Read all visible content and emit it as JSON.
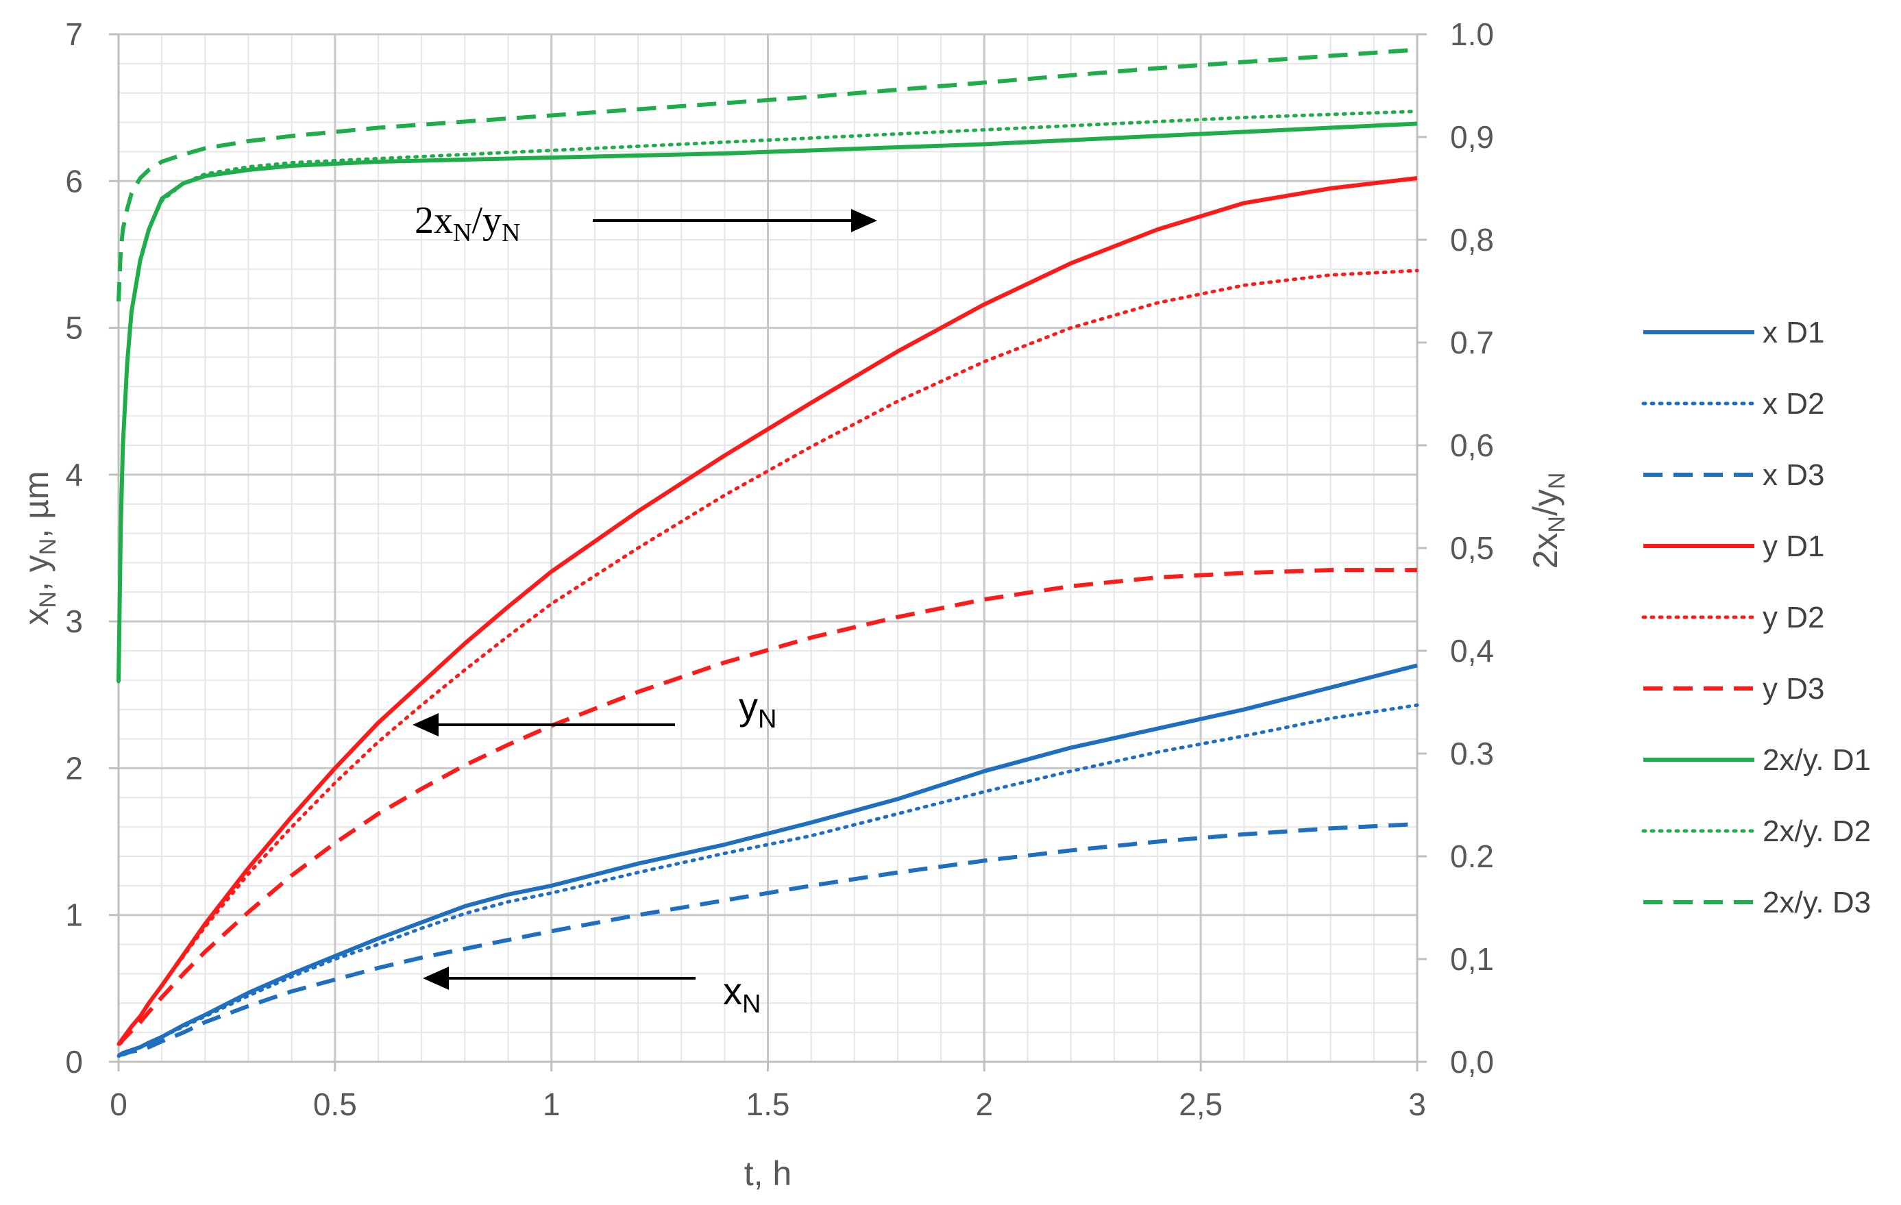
{
  "chart_data": {
    "type": "line",
    "x": [
      0,
      0.005,
      0.01,
      0.02,
      0.03,
      0.05,
      0.07,
      0.1,
      0.15,
      0.2,
      0.3,
      0.4,
      0.5,
      0.6,
      0.7,
      0.8,
      0.9,
      1.0,
      1.2,
      1.4,
      1.6,
      1.8,
      2.0,
      2.2,
      2.4,
      2.6,
      2.8,
      3.0
    ],
    "xlabel": "t, h",
    "ylabel_left": "x_N, y_N, µm",
    "ylabel_right": "2x_N/y_N",
    "xlim": [
      0,
      3
    ],
    "ylim_left": [
      0,
      7
    ],
    "ylim_right": [
      0,
      1
    ],
    "x_ticks": [
      "0",
      "0.5",
      "1",
      "1.5",
      "2",
      "2,5",
      "3"
    ],
    "y_ticks_left": [
      "0",
      "1",
      "2",
      "3",
      "4",
      "5",
      "6",
      "7"
    ],
    "y_ticks_right": [
      "0,0",
      "0,1",
      "0.2",
      "0.3",
      "0,4",
      "0,5",
      "0,6",
      "0.7",
      "0,8",
      "0,9",
      "1.0"
    ],
    "grid": true,
    "legend_position": "right",
    "series": [
      {
        "name": "x D1",
        "axis": "left",
        "color": "#1f6fc0",
        "style": "solid",
        "values": [
          0.04,
          0.05,
          0.06,
          0.07,
          0.08,
          0.1,
          0.13,
          0.17,
          0.25,
          0.32,
          0.47,
          0.6,
          0.72,
          0.84,
          0.95,
          1.06,
          1.14,
          1.2,
          1.35,
          1.48,
          1.63,
          1.79,
          1.98,
          2.14,
          2.27,
          2.4,
          2.55,
          2.7
        ]
      },
      {
        "name": "x D2",
        "axis": "left",
        "color": "#1f6fc0",
        "style": "dotted",
        "values": [
          0.04,
          0.05,
          0.06,
          0.07,
          0.08,
          0.1,
          0.13,
          0.17,
          0.24,
          0.31,
          0.45,
          0.58,
          0.7,
          0.8,
          0.91,
          1.01,
          1.09,
          1.15,
          1.29,
          1.42,
          1.54,
          1.69,
          1.84,
          1.98,
          2.11,
          2.22,
          2.34,
          2.43
        ]
      },
      {
        "name": "x D3",
        "axis": "left",
        "color": "#1f6fc0",
        "style": "dashed",
        "values": [
          0.04,
          0.05,
          0.05,
          0.06,
          0.07,
          0.08,
          0.1,
          0.14,
          0.2,
          0.27,
          0.38,
          0.48,
          0.56,
          0.64,
          0.71,
          0.77,
          0.83,
          0.89,
          1.0,
          1.1,
          1.2,
          1.29,
          1.37,
          1.44,
          1.5,
          1.55,
          1.59,
          1.62
        ]
      },
      {
        "name": "y D1",
        "axis": "left",
        "color": "#ff1a1a",
        "style": "solid",
        "values": [
          0.12,
          0.14,
          0.16,
          0.2,
          0.24,
          0.31,
          0.4,
          0.52,
          0.73,
          0.94,
          1.32,
          1.67,
          2.0,
          2.31,
          2.58,
          2.85,
          3.1,
          3.34,
          3.75,
          4.13,
          4.49,
          4.84,
          5.16,
          5.44,
          5.67,
          5.85,
          5.95,
          6.02
        ]
      },
      {
        "name": "y D2",
        "axis": "left",
        "color": "#ff1a1a",
        "style": "dotted",
        "values": [
          0.12,
          0.14,
          0.16,
          0.2,
          0.24,
          0.31,
          0.4,
          0.52,
          0.72,
          0.92,
          1.28,
          1.6,
          1.9,
          2.18,
          2.43,
          2.67,
          2.9,
          3.12,
          3.5,
          3.86,
          4.19,
          4.5,
          4.77,
          5.0,
          5.17,
          5.29,
          5.36,
          5.39
        ]
      },
      {
        "name": "y D3",
        "axis": "left",
        "color": "#ff1a1a",
        "style": "dashed",
        "values": [
          0.12,
          0.13,
          0.15,
          0.18,
          0.21,
          0.27,
          0.34,
          0.44,
          0.6,
          0.75,
          1.02,
          1.27,
          1.49,
          1.69,
          1.86,
          2.02,
          2.16,
          2.29,
          2.52,
          2.72,
          2.89,
          3.03,
          3.15,
          3.24,
          3.3,
          3.33,
          3.35,
          3.35
        ]
      },
      {
        "name": "2x/y. D1",
        "axis": "right",
        "color": "#1fad4b",
        "style": "solid",
        "values": [
          0.37,
          0.52,
          0.6,
          0.68,
          0.73,
          0.78,
          0.81,
          0.84,
          0.855,
          0.862,
          0.868,
          0.872,
          0.874,
          0.876,
          0.877,
          0.878,
          0.879,
          0.88,
          0.882,
          0.884,
          0.887,
          0.89,
          0.893,
          0.897,
          0.901,
          0.905,
          0.909,
          0.913
        ]
      },
      {
        "name": "2x/y. D2",
        "axis": "right",
        "color": "#1fad4b",
        "style": "dotted",
        "values": [
          0.37,
          0.52,
          0.6,
          0.68,
          0.73,
          0.78,
          0.81,
          0.838,
          0.855,
          0.864,
          0.871,
          0.875,
          0.877,
          0.879,
          0.881,
          0.883,
          0.885,
          0.887,
          0.891,
          0.895,
          0.899,
          0.903,
          0.907,
          0.911,
          0.915,
          0.919,
          0.922,
          0.925
        ]
      },
      {
        "name": "2x/y. D3",
        "axis": "right",
        "color": "#1fad4b",
        "style": "dashed",
        "values": [
          0.74,
          0.79,
          0.81,
          0.83,
          0.845,
          0.86,
          0.868,
          0.876,
          0.883,
          0.889,
          0.896,
          0.901,
          0.905,
          0.909,
          0.912,
          0.915,
          0.918,
          0.921,
          0.927,
          0.933,
          0.939,
          0.946,
          0.953,
          0.96,
          0.967,
          0.973,
          0.979,
          0.985
        ]
      }
    ],
    "annotations": [
      {
        "id": "ratio",
        "base": "2x",
        "sub1": "N",
        "mid": "/y",
        "sub2": "N",
        "arrow": "right"
      },
      {
        "id": "yN",
        "base": "y",
        "sub": "N",
        "arrow": "left"
      },
      {
        "id": "xN",
        "base": "x",
        "sub": "N",
        "arrow": "left"
      }
    ]
  }
}
